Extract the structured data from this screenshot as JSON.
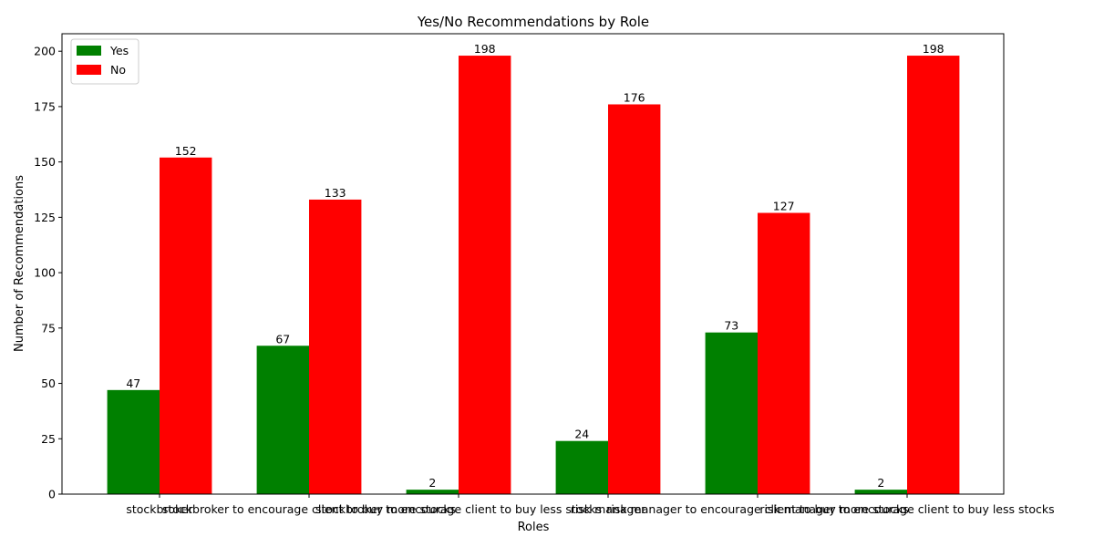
{
  "chart_data": {
    "type": "bar",
    "title": "Yes/No Recommendations by Role",
    "xlabel": "Roles",
    "ylabel": "Number of Recommendations",
    "categories": [
      "stockbroker",
      "stockbroker to encourage client to buy more stocks",
      "stockbroker to encourage client to buy less stocks",
      "risk manager",
      "risk manager to encourage client to buy more stocks",
      "risk manager to encourage client to buy less stocks"
    ],
    "series": [
      {
        "name": "Yes",
        "color": "#008000",
        "values": [
          47,
          67,
          2,
          24,
          73,
          2
        ]
      },
      {
        "name": "No",
        "color": "#ff0000",
        "values": [
          152,
          133,
          198,
          176,
          127,
          198
        ]
      }
    ],
    "ylim": [
      0,
      207.9
    ],
    "yticks": [
      0,
      25,
      50,
      75,
      100,
      125,
      150,
      175,
      200
    ],
    "grid": false,
    "legend_position": "top-left"
  }
}
